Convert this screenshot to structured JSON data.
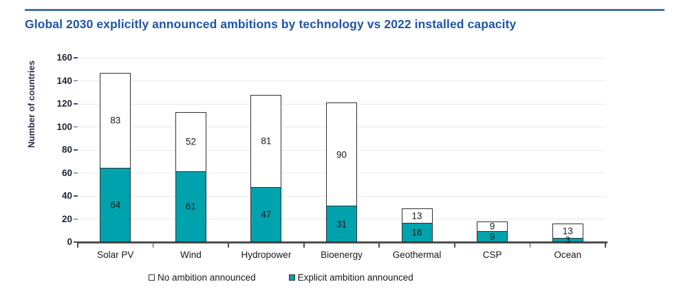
{
  "title": "Global 2030 explicitly announced ambitions by technology vs 2022 installed capacity",
  "colors": {
    "title": "#1F55A8",
    "top_rule": "#44719E",
    "explicit_teal": "#00A3AD",
    "no_ambition_white": "#FFFFFF",
    "bar_border": "#2E2E2E",
    "gridline": "#E8E8E8",
    "axis": "#4D4D4D",
    "text": "#14181C"
  },
  "chart_data": {
    "type": "bar",
    "stacked": true,
    "title": "Global 2030 explicitly announced ambitions by technology vs 2022 installed capacity",
    "categories": [
      "Solar PV",
      "Wind",
      "Hydropower",
      "Bioenergy",
      "Geothermal",
      "CSP",
      "Ocean"
    ],
    "series": [
      {
        "name": "No ambition announced",
        "color": "#FFFFFF",
        "values": [
          83,
          52,
          81,
          90,
          13,
          9,
          13
        ]
      },
      {
        "name": "Explicit ambition announced",
        "color": "#00A3AD",
        "values": [
          64,
          61,
          47,
          31,
          16,
          9,
          3
        ]
      }
    ],
    "stack_bottom_series": "Explicit ambition announced",
    "totals": [
      147,
      113,
      128,
      121,
      29,
      18,
      16
    ],
    "xlabel": "",
    "ylabel": "Number of countries",
    "ylim": [
      0,
      160
    ],
    "yticks": [
      0,
      20,
      40,
      60,
      80,
      100,
      120,
      140,
      160
    ],
    "grid": true,
    "legend_position": "bottom"
  }
}
